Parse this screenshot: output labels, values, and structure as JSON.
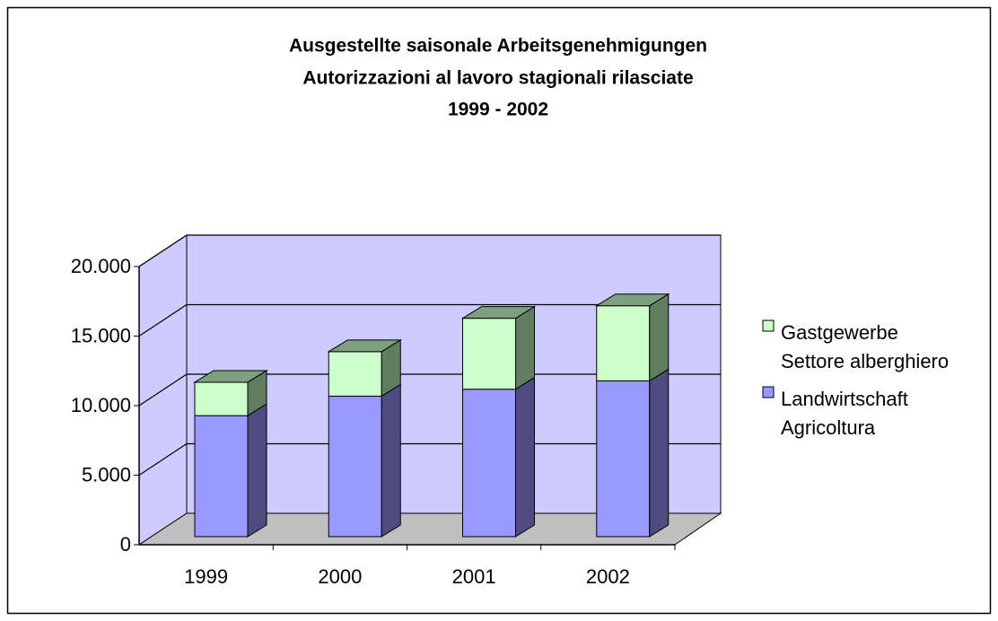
{
  "chart_data": {
    "type": "bar3d_stacked",
    "title": [
      "Ausgestellte saisonale Arbeitsgenehmigungen",
      "Autorizzazioni al lavoro stagionali rilasciate",
      "1999 - 2002"
    ],
    "categories": [
      "1999",
      "2000",
      "2001",
      "2002"
    ],
    "series": [
      {
        "name": [
          "Landwirtschaft",
          "Agricoltura"
        ],
        "color": "#9999ff",
        "values": [
          8700,
          10100,
          10600,
          11200
        ]
      },
      {
        "name": [
          "Gastgewerbe",
          "Settore alberghiero"
        ],
        "color": "#ccffcc",
        "values": [
          2400,
          3200,
          5100,
          5400
        ]
      }
    ],
    "ylim": [
      0,
      20000
    ],
    "yticks": [
      0,
      {
        "value": 5000,
        "label": "5.000"
      },
      {
        "value": 10000,
        "label": "10.000"
      },
      {
        "value": 15000,
        "label": "15.000"
      },
      {
        "value": 20000,
        "label": "20.000"
      }
    ],
    "grid": true,
    "legend": "right"
  }
}
